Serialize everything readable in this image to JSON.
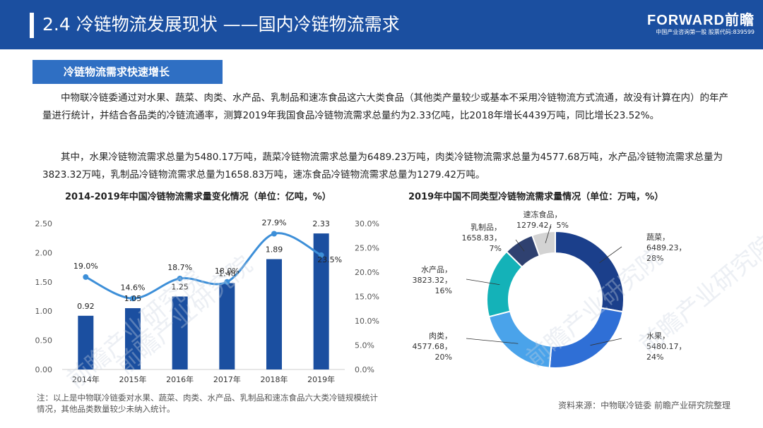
{
  "header": {
    "title": "2.4 冷链物流发展现状 ——国内冷链物流需求",
    "logo": "FORWARD前瞻",
    "logo_sub": "中国产业咨询第一股 股票代码:839599",
    "bg_color": "#1b4fa0"
  },
  "section": {
    "label": "冷链物流需求快速增长"
  },
  "body": {
    "paragraph1": "中物联冷链委通过对水果、蔬菜、肉类、水产品、乳制品和速冻食品这六大类食品（其他类产量较少或基本不采用冷链物流方式流通，故没有计算在内）的年产量进行统计，并结合各品类的冷链流通率，测算2019年我国食品冷链物流需求总量约为2.33亿吨，比2018年增长4439万吨，同比增长23.52%。",
    "paragraph2": "其中，水果冷链物流需求总量为5480.17万吨，蔬菜冷链物流需求总量为6489.23万吨，肉类冷链物流需求总量为4577.68万吨，水产品冷链物流需求总量为3823.32万吨，乳制品冷链物流需求总量为1658.83万吨，速冻食品冷链物流需求总量为1279.42万吨。"
  },
  "chart_data": [
    {
      "type": "bar",
      "title": "2014-2019年中国冷链物流需求量变化情况（单位：亿吨，%）",
      "categories": [
        "2014年",
        "2015年",
        "2016年",
        "2017年",
        "2018年",
        "2019年"
      ],
      "series": [
        {
          "values": [
            0.92,
            1.05,
            1.25,
            1.48,
            1.89,
            2.33
          ],
          "labels": [
            "0.92",
            "1.05",
            "1.25",
            "1.48",
            "1.89",
            "2.33"
          ],
          "color": "#1b4fa0"
        },
        {
          "type": "line",
          "values": [
            19.0,
            14.6,
            18.7,
            18.0,
            27.9,
            23.5
          ],
          "labels": [
            "19.0%",
            "14.6%",
            "18.7%",
            "18.0%",
            "27.9%",
            "23.5%"
          ],
          "color": "#3d8fd8"
        }
      ],
      "y_left": {
        "ticks": [
          "0.00",
          "0.50",
          "1.00",
          "1.50",
          "2.00",
          "2.50"
        ],
        "lim": [
          0,
          2.5
        ]
      },
      "y_right": {
        "ticks": [
          "0.0%",
          "5.0%",
          "10.0%",
          "15.0%",
          "20.0%",
          "25.0%",
          "30.0%"
        ],
        "lim": [
          0,
          30
        ]
      },
      "grid": false
    },
    {
      "type": "pie",
      "title": "2019年中国不同类型冷链物流需求量情况（单位：万吨，%）",
      "donut": true,
      "slices": [
        {
          "name": "蔬菜",
          "value": 6489.23,
          "value_label": "6489.23",
          "pct": "28%",
          "color": "#1b3f8b"
        },
        {
          "name": "水果",
          "value": 5480.17,
          "value_label": "5480.17",
          "pct": "24%",
          "color": "#2f6fd6"
        },
        {
          "name": "肉类",
          "value": 4577.68,
          "value_label": "4577.68",
          "pct": "20%",
          "color": "#4aa3ea"
        },
        {
          "name": "水产品",
          "value": 3823.32,
          "value_label": "3823.32",
          "pct": "16%",
          "color": "#14b2b8"
        },
        {
          "name": "乳制品",
          "value": 1658.83,
          "value_label": "1658.83",
          "pct": "7%",
          "color": "#2f4170"
        },
        {
          "name": "速冻食品",
          "value": 1279.42,
          "value_label": "1279.42",
          "pct": "5%",
          "color": "#d3d3d3"
        }
      ]
    }
  ],
  "footer": {
    "note": "注：以上是中物联冷链委对水果、蔬菜、肉类、水产品、乳制品和速冻食品六大类冷链规模统计情况，其他品类数量较少未纳入统计。",
    "source": "资料来源：中物联冷链委 前瞻产业研究院整理"
  },
  "watermark": "前瞻产业研究院"
}
